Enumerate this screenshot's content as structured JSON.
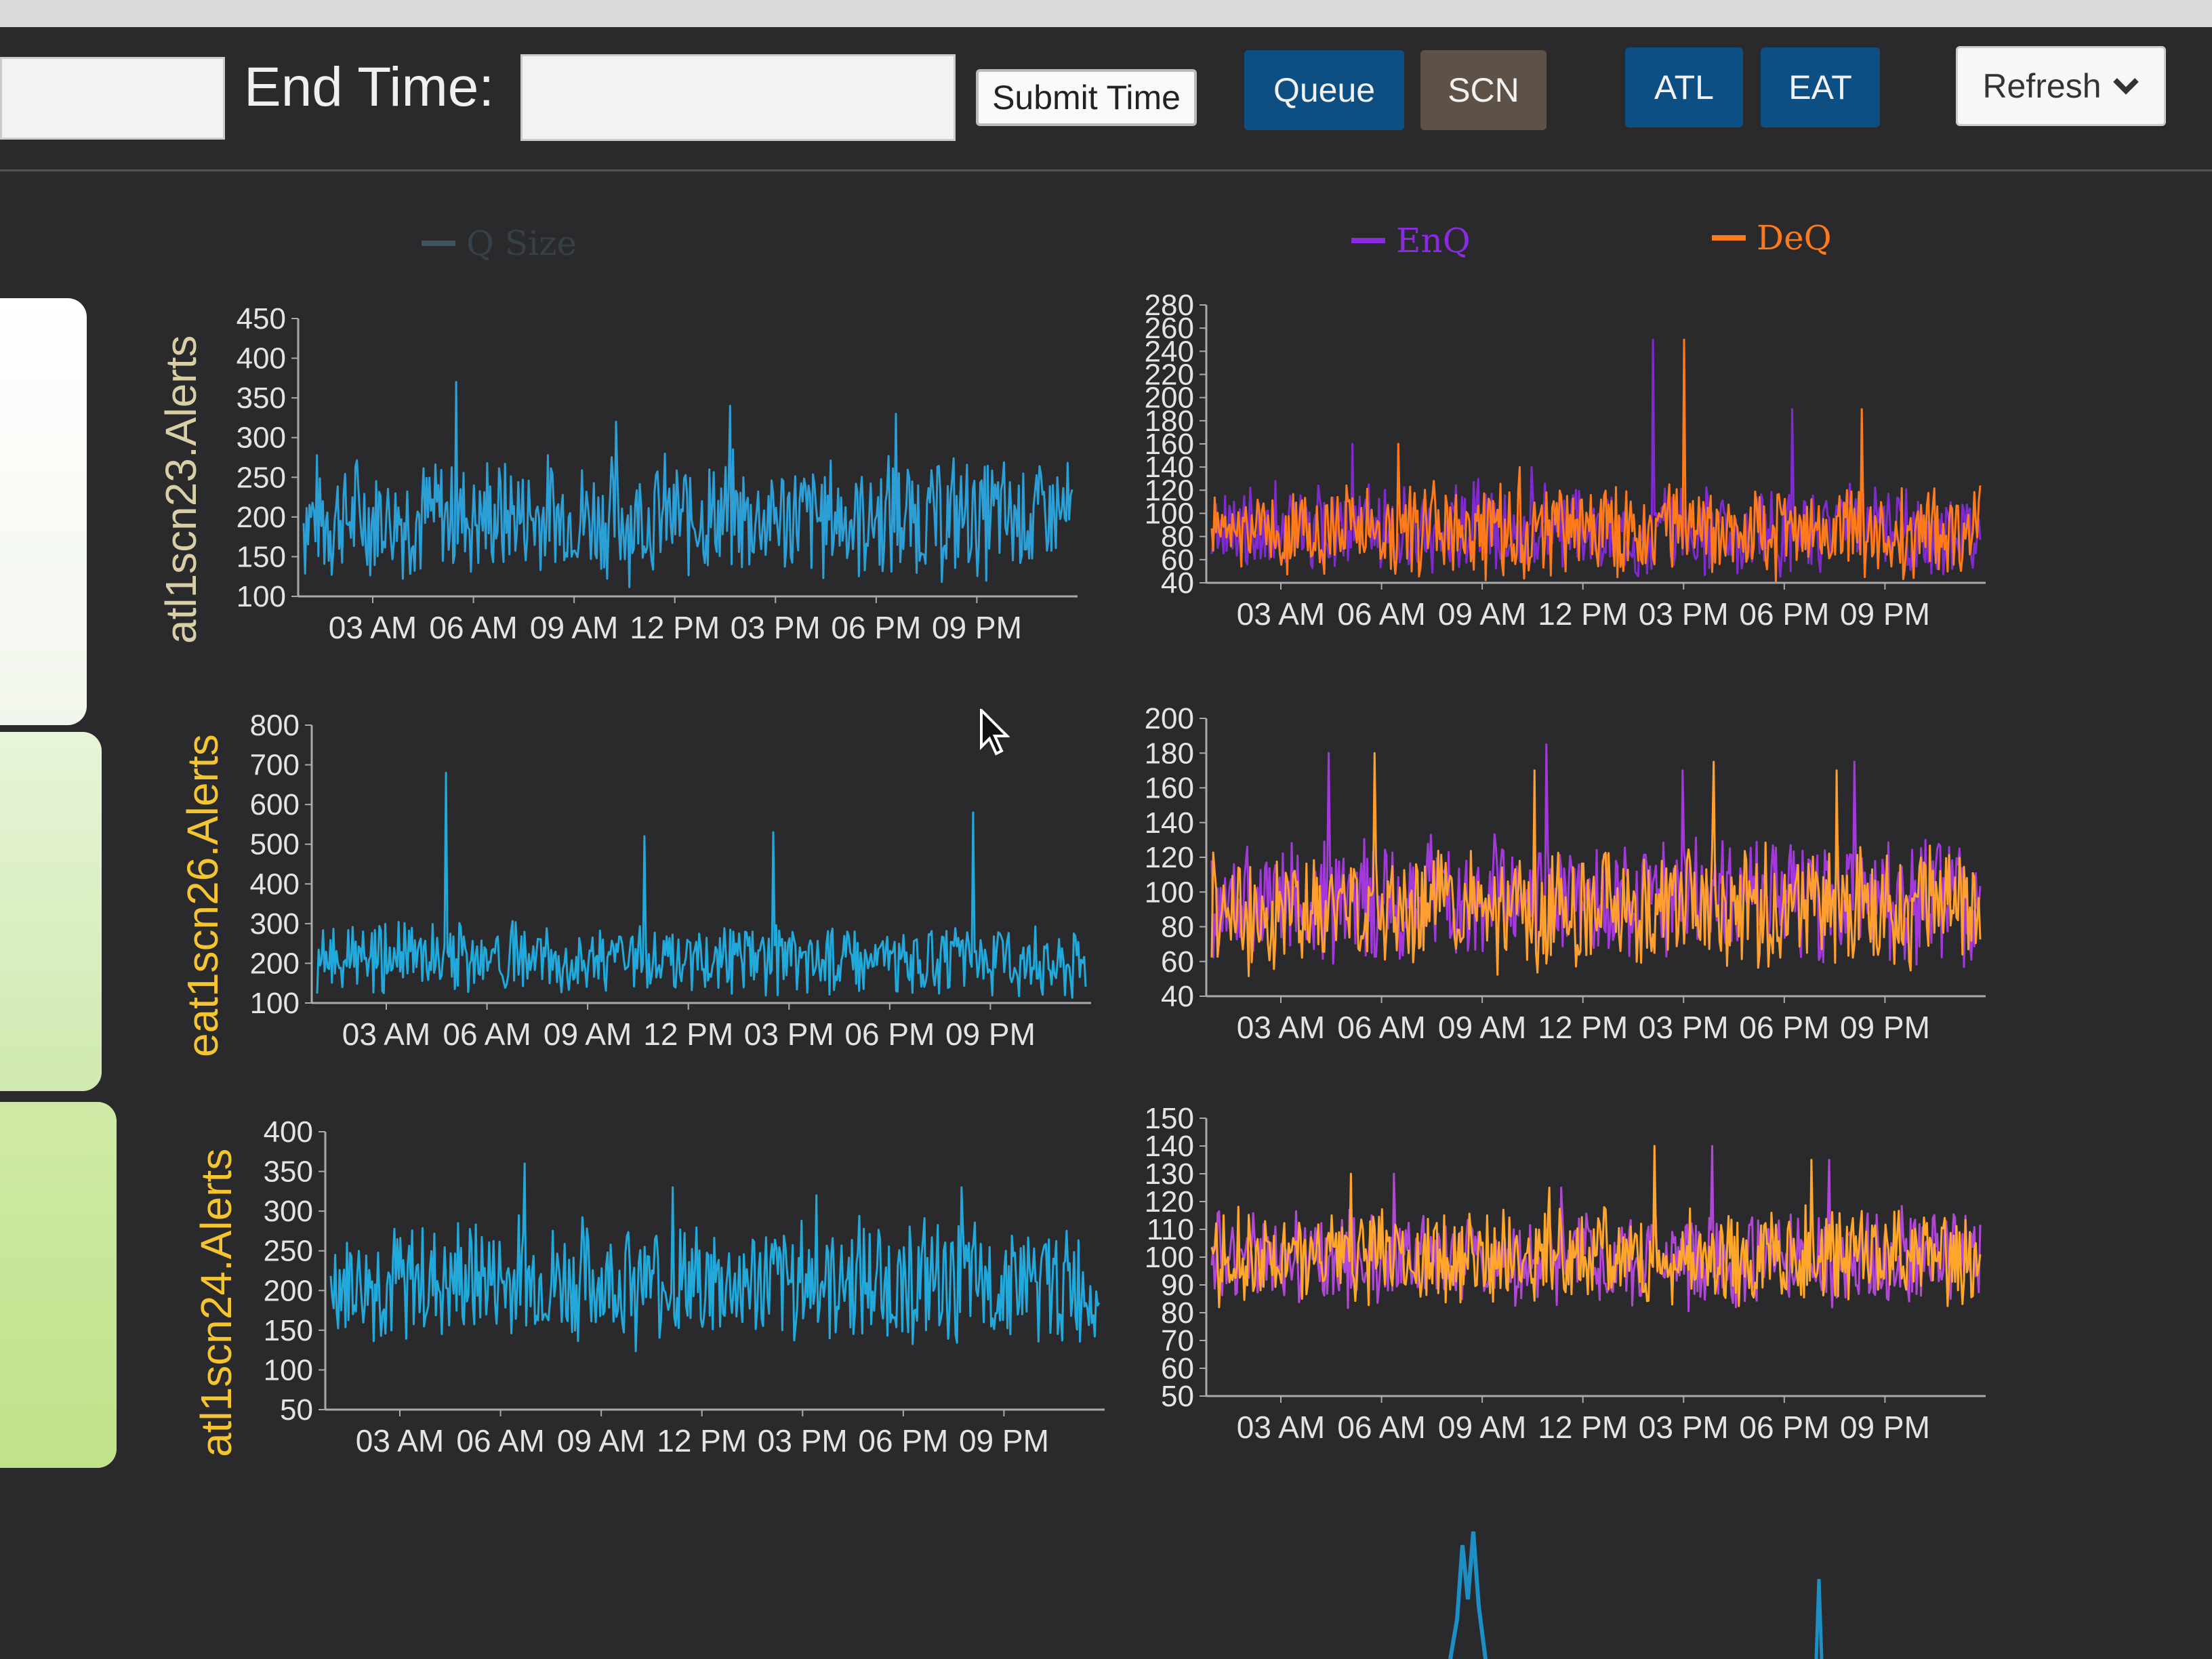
{
  "toolbar": {
    "end_time_label": "End Time:",
    "start_time_value": "",
    "end_time_value": "",
    "submit_label": "Submit Time",
    "queue_label": "Queue",
    "scn_label": "SCN",
    "atl_label": "ATL",
    "eat_label": "EAT",
    "refresh_label": "Refresh"
  },
  "legend": {
    "left": {
      "name": "Q Size",
      "color": "#2b9fd6"
    },
    "right": [
      {
        "name": "EnQ",
        "color": "#8a2be2"
      },
      {
        "name": "DeQ",
        "color": "#ff7a1a"
      }
    ]
  },
  "icons": {
    "refresh_caret": "chevron-down-icon",
    "cursor": "mouse-pointer-icon"
  },
  "chart_data": [
    {
      "type": "line",
      "title": "",
      "ylabel": "atl1scn23.Alerts",
      "yticks": [
        "100",
        "150",
        "200",
        "250",
        "300",
        "350",
        "400",
        "450"
      ],
      "ylim": [
        100,
        450
      ],
      "xticks": [
        "03 AM",
        "06 AM",
        "09 AM",
        "12 PM",
        "03 PM",
        "06 PM",
        "09 PM"
      ],
      "series": [
        {
          "name": "Q Size",
          "color": "#2b9fd6",
          "base": 200,
          "amp": 90,
          "spikes": [
            370,
            320,
            340,
            330
          ]
        }
      ]
    },
    {
      "type": "line",
      "title": "",
      "ylabel": "",
      "yticks": [
        "40",
        "60",
        "80",
        "100",
        "120",
        "140",
        "160",
        "180",
        "200",
        "220",
        "240",
        "260",
        "280"
      ],
      "ylim": [
        40,
        280
      ],
      "xticks": [
        "03 AM",
        "06 AM",
        "09 AM",
        "12 PM",
        "03 PM",
        "06 PM",
        "09 PM"
      ],
      "series": [
        {
          "name": "EnQ",
          "color": "#8a2be2",
          "base": 85,
          "amp": 45,
          "spikes": [
            160,
            140,
            250,
            190
          ]
        },
        {
          "name": "DeQ",
          "color": "#ff7a1a",
          "base": 85,
          "amp": 45,
          "spikes": [
            160,
            140,
            250,
            190
          ]
        }
      ]
    },
    {
      "type": "line",
      "title": "",
      "ylabel": "eat1scn26.Alerts",
      "yticks": [
        "100",
        "200",
        "300",
        "400",
        "500",
        "600",
        "700",
        "800"
      ],
      "ylim": [
        100,
        800
      ],
      "xticks": [
        "03 AM",
        "06 AM",
        "09 AM",
        "12 PM",
        "03 PM",
        "06 PM",
        "09 PM"
      ],
      "series": [
        {
          "name": "Q Size",
          "color": "#22a9dc",
          "base": 210,
          "amp": 100,
          "spikes": [
            680,
            520,
            530,
            580
          ]
        }
      ]
    },
    {
      "type": "line",
      "title": "",
      "ylabel": "",
      "yticks": [
        "40",
        "60",
        "80",
        "100",
        "120",
        "140",
        "160",
        "180",
        "200"
      ],
      "ylim": [
        40,
        200
      ],
      "xticks": [
        "03 AM",
        "06 AM",
        "09 AM",
        "12 PM",
        "03 PM",
        "06 PM",
        "09 PM"
      ],
      "series": [
        {
          "name": "EnQ",
          "color": "#b03af0",
          "base": 95,
          "amp": 40,
          "spikes": [
            180,
            185,
            170,
            175
          ]
        },
        {
          "name": "DeQ",
          "color": "#ff9f30",
          "base": 90,
          "amp": 40,
          "spikes": [
            180,
            170,
            175,
            170
          ]
        }
      ]
    },
    {
      "type": "line",
      "title": "",
      "ylabel": "atl1scn24.Alerts",
      "yticks": [
        "50",
        "100",
        "150",
        "200",
        "250",
        "300",
        "350",
        "400"
      ],
      "ylim": [
        50,
        400
      ],
      "xticks": [
        "03 AM",
        "06 AM",
        "09 AM",
        "12 PM",
        "03 PM",
        "06 PM",
        "09 PM"
      ],
      "series": [
        {
          "name": "Q Size",
          "color": "#22a9dc",
          "base": 210,
          "amp": 90,
          "spikes": [
            360,
            330,
            320,
            330
          ]
        }
      ]
    },
    {
      "type": "line",
      "title": "",
      "ylabel": "",
      "yticks": [
        "50",
        "60",
        "70",
        "80",
        "90",
        "100",
        "110",
        "120",
        "130",
        "140",
        "150"
      ],
      "ylim": [
        50,
        150
      ],
      "xticks": [
        "03 AM",
        "06 AM",
        "09 AM",
        "12 PM",
        "03 PM",
        "06 PM",
        "09 PM"
      ],
      "series": [
        {
          "name": "EnQ",
          "color": "#c04ae8",
          "base": 100,
          "amp": 20,
          "spikes": [
            130,
            125,
            140,
            135
          ]
        },
        {
          "name": "DeQ",
          "color": "#ffa62b",
          "base": 100,
          "amp": 20,
          "spikes": [
            130,
            125,
            140,
            135
          ]
        }
      ]
    }
  ]
}
